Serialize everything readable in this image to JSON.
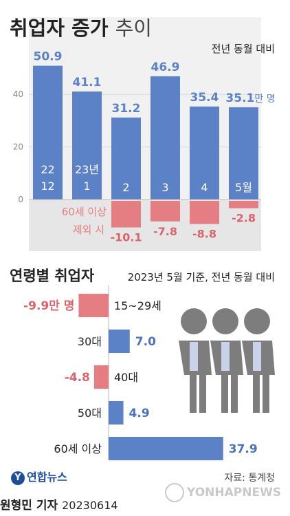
{
  "header": {
    "title_bold": "취업자 증가",
    "title_light": "추이",
    "subtitle": "전년 동월 대비"
  },
  "chart_data": [
    {
      "type": "bar",
      "title": "취업자 증가 추이",
      "subtitle": "전년 동월 대비",
      "unit": "만 명",
      "categories": [
        [
          "22",
          "12"
        ],
        [
          "23년",
          "1"
        ],
        [
          "2"
        ],
        [
          "3"
        ],
        [
          "4"
        ],
        [
          "5월"
        ]
      ],
      "series": [
        {
          "values": [
            50.9,
            41.1,
            31.2,
            46.9,
            35.4,
            35.1
          ],
          "color": "#5b82c6",
          "labels": [
            "50.9",
            "41.1",
            "31.2",
            "46.9",
            "35.4",
            "35.1"
          ]
        },
        {
          "name": "60세 이상 제외 시",
          "values": [
            null,
            null,
            -10.1,
            -7.8,
            -8.8,
            -2.8
          ],
          "color": "#e57e83",
          "labels": [
            "",
            "",
            "-10.1",
            "-7.8",
            "-8.8",
            "-2.8"
          ]
        }
      ],
      "y_ticks": [
        "40",
        "20",
        "0"
      ],
      "ylim": [
        -14,
        56
      ],
      "value_suffix_last": "만 명",
      "legend_label_line1": "60세 이상",
      "legend_label_line2": "제외 시"
    },
    {
      "type": "bar",
      "orientation": "horizontal",
      "title": "연령별 취업자",
      "subtitle": "2023년 5월 기준, 전년 동월 대비",
      "unit": "만 명",
      "categories": [
        "15~29세",
        "30대",
        "40대",
        "50대",
        "60세 이상"
      ],
      "values": [
        -9.9,
        7.0,
        -4.8,
        4.9,
        37.9
      ],
      "labels": [
        "-9.9만 명",
        "7.0",
        "-4.8",
        "4.9",
        "37.9"
      ],
      "colors": {
        "positive": "#5b82c6",
        "negative": "#e57e83"
      },
      "xlim": [
        -10,
        40
      ]
    }
  ],
  "section2": {
    "title": "연령별 취업자",
    "subtitle": "2023년 5월 기준, 전년 동월 대비"
  },
  "footer": {
    "logo_text": "연합뉴스",
    "source": "자료: 통계청",
    "author": "원형민 기자",
    "date": "20230614",
    "watermark": "YONHAPNEWS"
  },
  "icons": {
    "people": "people-group-icon",
    "logo": "yonhap-logo-icon"
  }
}
